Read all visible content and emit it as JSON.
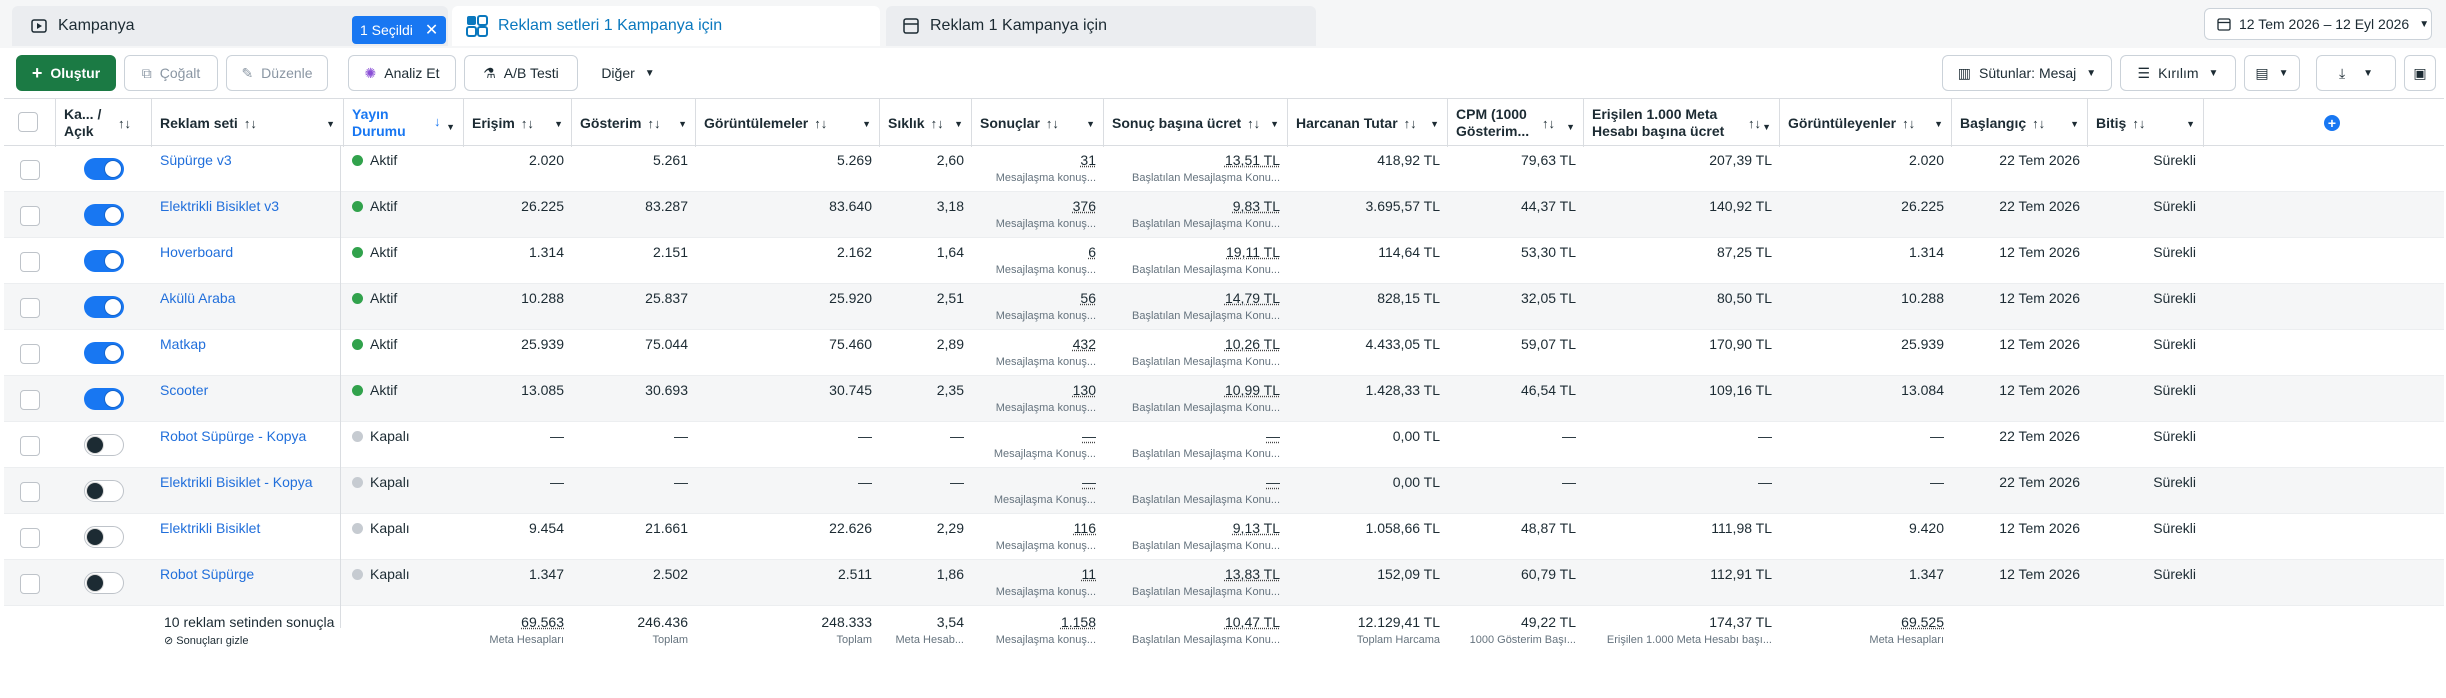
{
  "tabs": {
    "campaign": "Kampanya",
    "selected_chip": "1 Seçildi",
    "adsets": "Reklam setleri 1 Kampanya için",
    "ads": "Reklam 1 Kampanya için",
    "date_range": "12 Tem 2026 – 12 Eyl 2026"
  },
  "toolbar": {
    "create": "Oluştur",
    "duplicate": "Çoğalt",
    "edit": "Düzenle",
    "analyze": "Analiz Et",
    "ab_test": "A/B Testi",
    "more": "Diğer",
    "columns": "Sütunlar: Mesaj",
    "breakdown": "Kırılım"
  },
  "columns": {
    "toggle": "Ka... / Açık",
    "name": "Reklam seti",
    "status": "Yayın Durumu",
    "reach": "Erişim",
    "impressions": "Gösterim",
    "views": "Görüntülemeler",
    "frequency": "Sıklık",
    "results": "Sonuçlar",
    "cost_per_result": "Sonuç başına ücret",
    "spend": "Harcanan Tutar",
    "cpm": "CPM (1000 Gösterim...",
    "cost_per_1000_reached": "Erişilen 1.000 Meta Hesabı başına ücret",
    "viewers": "Görüntüleyenler",
    "start": "Başlangıç",
    "end": "Bitiş"
  },
  "rows": [
    {
      "on": true,
      "name": "Süpürge v3",
      "status": "Aktif",
      "reach": "2.020",
      "impressions": "5.261",
      "views": "5.269",
      "frequency": "2,60",
      "results": "31",
      "results_sub": "Mesajlaşma konuş...",
      "cpr": "13,51 TL",
      "cpr_sub": "Başlatılan Mesajlaşma Konu...",
      "spend": "418,92 TL",
      "cpm": "79,63 TL",
      "cp1000": "207,39 TL",
      "viewers": "2.020",
      "start": "22 Tem 2026",
      "end": "Sürekli"
    },
    {
      "on": true,
      "name": "Elektrikli Bisiklet v3",
      "status": "Aktif",
      "reach": "26.225",
      "impressions": "83.287",
      "views": "83.640",
      "frequency": "3,18",
      "results": "376",
      "results_sub": "Mesajlaşma konuş...",
      "cpr": "9,83 TL",
      "cpr_sub": "Başlatılan Mesajlaşma Konu...",
      "spend": "3.695,57 TL",
      "cpm": "44,37 TL",
      "cp1000": "140,92 TL",
      "viewers": "26.225",
      "start": "22 Tem 2026",
      "end": "Sürekli"
    },
    {
      "on": true,
      "name": "Hoverboard",
      "status": "Aktif",
      "reach": "1.314",
      "impressions": "2.151",
      "views": "2.162",
      "frequency": "1,64",
      "results": "6",
      "results_sub": "Mesajlaşma konuş...",
      "cpr": "19,11 TL",
      "cpr_sub": "Başlatılan Mesajlaşma Konu...",
      "spend": "114,64 TL",
      "cpm": "53,30 TL",
      "cp1000": "87,25 TL",
      "viewers": "1.314",
      "start": "12 Tem 2026",
      "end": "Sürekli"
    },
    {
      "on": true,
      "name": "Akülü Araba",
      "status": "Aktif",
      "reach": "10.288",
      "impressions": "25.837",
      "views": "25.920",
      "frequency": "2,51",
      "results": "56",
      "results_sub": "Mesajlaşma konuş...",
      "cpr": "14,79 TL",
      "cpr_sub": "Başlatılan Mesajlaşma Konu...",
      "spend": "828,15 TL",
      "cpm": "32,05 TL",
      "cp1000": "80,50 TL",
      "viewers": "10.288",
      "start": "12 Tem 2026",
      "end": "Sürekli"
    },
    {
      "on": true,
      "name": "Matkap",
      "status": "Aktif",
      "reach": "25.939",
      "impressions": "75.044",
      "views": "75.460",
      "frequency": "2,89",
      "results": "432",
      "results_sub": "Mesajlaşma konuş...",
      "cpr": "10,26 TL",
      "cpr_sub": "Başlatılan Mesajlaşma Konu...",
      "spend": "4.433,05 TL",
      "cpm": "59,07 TL",
      "cp1000": "170,90 TL",
      "viewers": "25.939",
      "start": "12 Tem 2026",
      "end": "Sürekli"
    },
    {
      "on": true,
      "name": "Scooter",
      "status": "Aktif",
      "reach": "13.085",
      "impressions": "30.693",
      "views": "30.745",
      "frequency": "2,35",
      "results": "130",
      "results_sub": "Mesajlaşma konuş...",
      "cpr": "10,99 TL",
      "cpr_sub": "Başlatılan Mesajlaşma Konu...",
      "spend": "1.428,33 TL",
      "cpm": "46,54 TL",
      "cp1000": "109,16 TL",
      "viewers": "13.084",
      "start": "12 Tem 2026",
      "end": "Sürekli"
    },
    {
      "on": false,
      "name": "Robot Süpürge - Kopya",
      "status": "Kapalı",
      "reach": "—",
      "impressions": "—",
      "views": "—",
      "frequency": "—",
      "results": "—",
      "results_sub": "Mesajlaşma Konuş...",
      "cpr": "—",
      "cpr_sub": "Başlatılan Mesajlaşma Konu...",
      "spend": "0,00 TL",
      "cpm": "—",
      "cp1000": "—",
      "viewers": "—",
      "start": "22 Tem 2026",
      "end": "Sürekli"
    },
    {
      "on": false,
      "name": "Elektrikli Bisiklet - Kopya",
      "status": "Kapalı",
      "reach": "—",
      "impressions": "—",
      "views": "—",
      "frequency": "—",
      "results": "—",
      "results_sub": "Mesajlaşma Konuş...",
      "cpr": "—",
      "cpr_sub": "Başlatılan Mesajlaşma Konu...",
      "spend": "0,00 TL",
      "cpm": "—",
      "cp1000": "—",
      "viewers": "—",
      "start": "22 Tem 2026",
      "end": "Sürekli"
    },
    {
      "on": false,
      "name": "Elektrikli Bisiklet",
      "status": "Kapalı",
      "reach": "9.454",
      "impressions": "21.661",
      "views": "22.626",
      "frequency": "2,29",
      "results": "116",
      "results_sub": "Mesajlaşma konuş...",
      "cpr": "9,13 TL",
      "cpr_sub": "Başlatılan Mesajlaşma Konu...",
      "spend": "1.058,66 TL",
      "cpm": "48,87 TL",
      "cp1000": "111,98 TL",
      "viewers": "9.420",
      "start": "12 Tem 2026",
      "end": "Sürekli"
    },
    {
      "on": false,
      "name": "Robot Süpürge",
      "status": "Kapalı",
      "reach": "1.347",
      "impressions": "2.502",
      "views": "2.511",
      "frequency": "1,86",
      "results": "11",
      "results_sub": "Mesajlaşma konuş...",
      "cpr": "13,83 TL",
      "cpr_sub": "Başlatılan Mesajlaşma Konu...",
      "spend": "152,09 TL",
      "cpm": "60,79 TL",
      "cp1000": "112,91 TL",
      "viewers": "1.347",
      "start": "12 Tem 2026",
      "end": "Sürekli"
    }
  ],
  "footer": {
    "summary": "10 reklam setinden sonuçla",
    "hide_results": "Sonuçları gizle",
    "reach": "69.563",
    "reach_sub": "Meta Hesapları",
    "impressions": "246.436",
    "impressions_sub": "Toplam",
    "views": "248.333",
    "views_sub": "Toplam",
    "frequency": "3,54",
    "frequency_sub": "Meta Hesab...",
    "results": "1.158",
    "results_sub": "Mesajlaşma konuş...",
    "cpr": "10,47 TL",
    "cpr_sub": "Başlatılan Mesajlaşma Konu...",
    "spend": "12.129,41 TL",
    "spend_sub": "Toplam Harcama",
    "cpm": "49,22 TL",
    "cpm_sub": "1000 Gösterim Başı...",
    "cp1000": "174,37 TL",
    "cp1000_sub": "Erişilen 1.000 Meta Hesabı başı...",
    "viewers": "69.525",
    "viewers_sub": "Meta Hesapları"
  },
  "colors": {
    "primary": "#1b7a44",
    "accent": "#1877f2",
    "active": "#31a24c"
  }
}
